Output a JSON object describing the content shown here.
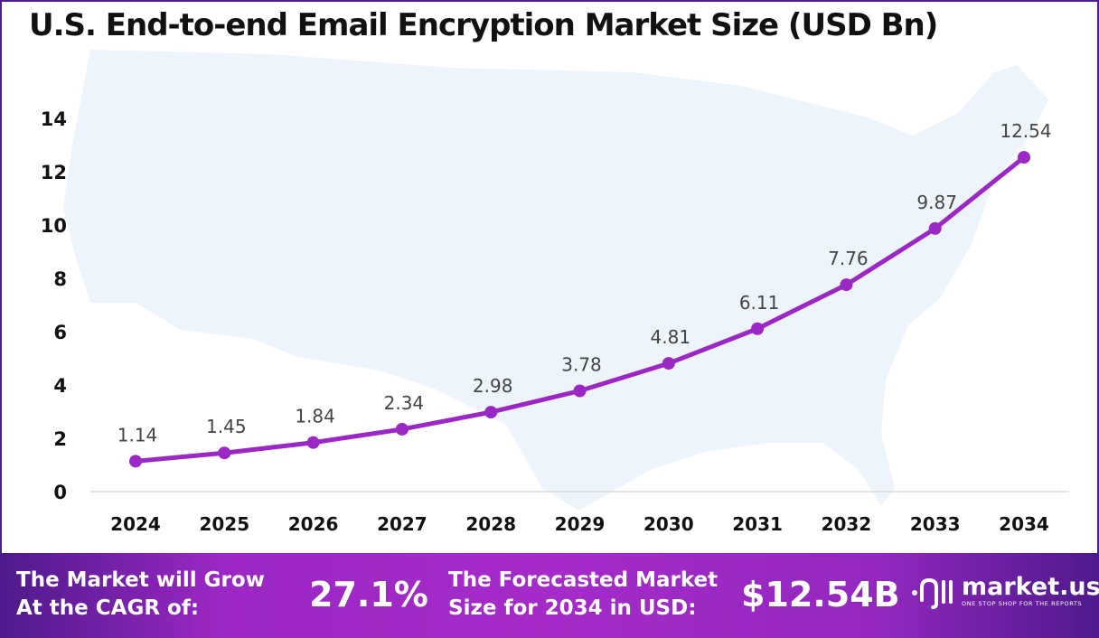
{
  "title": "U.S. End-to-end Email Encryption Market Size (USD Bn)",
  "chart_data": {
    "type": "line",
    "title": "U.S. End-to-end Email Encryption Market Size (USD Bn)",
    "categories": [
      "2024",
      "2025",
      "2026",
      "2027",
      "2028",
      "2029",
      "2030",
      "2031",
      "2032",
      "2033",
      "2034"
    ],
    "values": [
      1.14,
      1.45,
      1.84,
      2.34,
      2.98,
      3.78,
      4.81,
      6.11,
      7.76,
      9.87,
      12.54
    ],
    "data_labels": [
      "1.14",
      "1.45",
      "1.84",
      "2.34",
      "2.98",
      "3.78",
      "4.81",
      "6.11",
      "7.76",
      "9.87",
      "12.54"
    ],
    "yticks": [
      "0",
      "2",
      "4",
      "6",
      "8",
      "10",
      "12",
      "14"
    ],
    "ylim": [
      0,
      14
    ],
    "grid": false,
    "line_color": "#9b27c4",
    "background_map": "united-states"
  },
  "footer": {
    "cagr_label_1": "The Market will Grow",
    "cagr_label_2": "At the CAGR of:",
    "cagr_value": "27.1%",
    "forecast_label_1": "The Forecasted Market",
    "forecast_label_2": "Size for 2034 in USD:",
    "forecast_value": "$12.54B",
    "logo_name": "market.us",
    "logo_tagline": "ONE STOP SHOP FOR THE REPORTS"
  }
}
